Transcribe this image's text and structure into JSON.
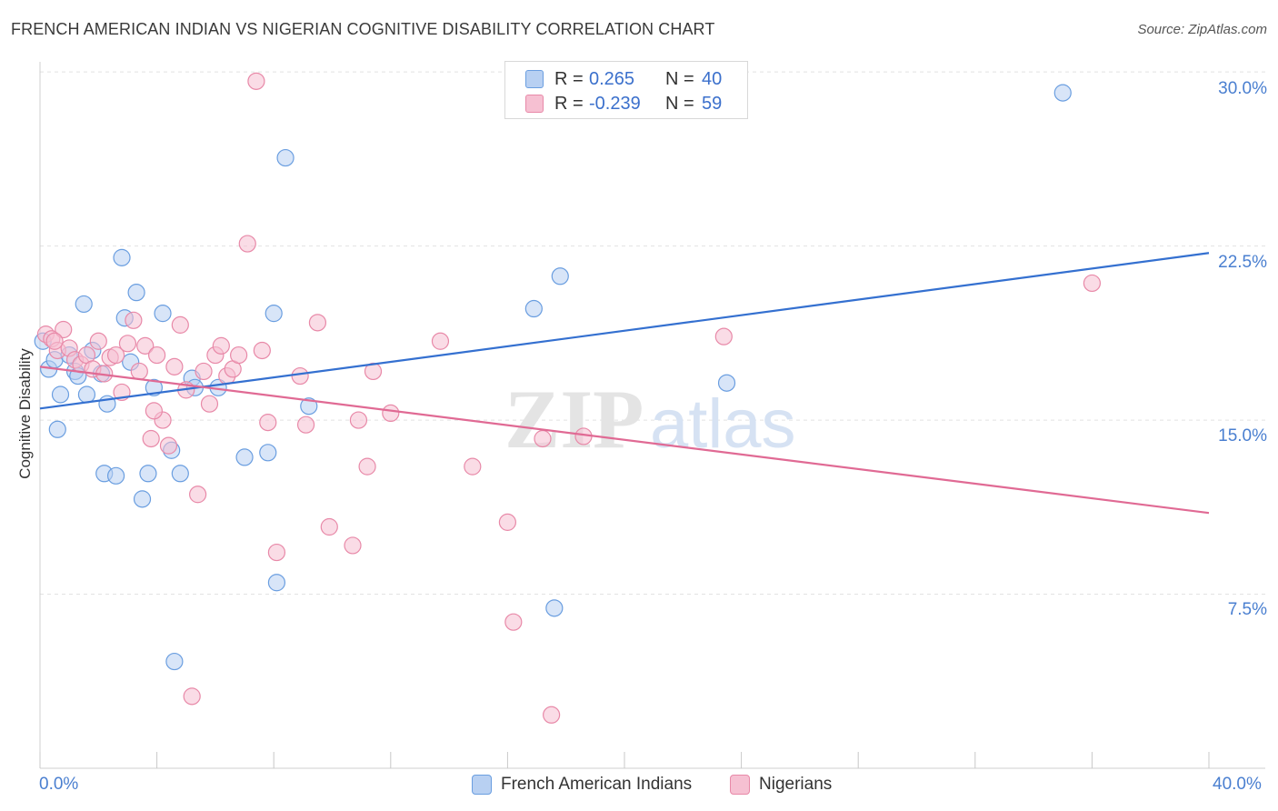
{
  "chart_data": {
    "type": "scatter",
    "title": "FRENCH AMERICAN INDIAN VS NIGERIAN COGNITIVE DISABILITY CORRELATION CHART",
    "source": "Source: ZipAtlas.com",
    "xlabel": "",
    "ylabel": "Cognitive Disability",
    "xlim": [
      0,
      40
    ],
    "ylim": [
      0,
      31.5
    ],
    "x_tick_labels": [
      {
        "value": 0,
        "label": "0.0%"
      },
      {
        "value": 40,
        "label": "40.0%"
      }
    ],
    "y_tick_labels": [
      {
        "value": 7.5,
        "label": "7.5%"
      },
      {
        "value": 15,
        "label": "15.0%"
      },
      {
        "value": 22.5,
        "label": "22.5%"
      },
      {
        "value": 30,
        "label": "30.0%"
      }
    ],
    "watermark": {
      "zip": "ZIP",
      "atlas": "atlas"
    },
    "stats": [
      {
        "series": "French American Indians",
        "r_label": "R =",
        "r": "0.265",
        "n_label": "N =",
        "n": "40"
      },
      {
        "series": "Nigerians",
        "r_label": "R =",
        "r": "-0.239",
        "n_label": "N =",
        "n": "59"
      }
    ],
    "series": [
      {
        "name": "French American Indians",
        "color": "#6a9ee0",
        "fill": "#b8d0f2",
        "trend": {
          "x": [
            0,
            40
          ],
          "y": [
            15.5,
            22.2
          ],
          "color": "#3470d0"
        },
        "points": [
          [
            0.1,
            18.4
          ],
          [
            0.3,
            17.2
          ],
          [
            0.5,
            17.6
          ],
          [
            0.7,
            16.1
          ],
          [
            1.0,
            17.8
          ],
          [
            1.2,
            17.1
          ],
          [
            0.6,
            14.6
          ],
          [
            1.5,
            20.0
          ],
          [
            1.6,
            16.1
          ],
          [
            1.8,
            18.0
          ],
          [
            2.1,
            17.0
          ],
          [
            2.3,
            15.7
          ],
          [
            2.2,
            12.7
          ],
          [
            2.6,
            12.6
          ],
          [
            2.8,
            22.0
          ],
          [
            2.9,
            19.4
          ],
          [
            3.1,
            17.5
          ],
          [
            3.3,
            20.5
          ],
          [
            3.5,
            11.6
          ],
          [
            3.7,
            12.7
          ],
          [
            3.9,
            16.4
          ],
          [
            4.2,
            19.6
          ],
          [
            4.5,
            13.7
          ],
          [
            4.8,
            12.7
          ],
          [
            5.2,
            16.8
          ],
          [
            5.3,
            16.4
          ],
          [
            6.1,
            16.4
          ],
          [
            7.0,
            13.4
          ],
          [
            7.8,
            13.6
          ],
          [
            8.0,
            19.6
          ],
          [
            8.4,
            26.3
          ],
          [
            9.2,
            15.6
          ],
          [
            8.1,
            8.0
          ],
          [
            4.6,
            4.6
          ],
          [
            16.9,
            19.8
          ],
          [
            17.8,
            21.2
          ],
          [
            17.6,
            6.9
          ],
          [
            23.5,
            16.6
          ],
          [
            35.0,
            29.1
          ],
          [
            1.3,
            16.9
          ]
        ]
      },
      {
        "name": "Nigerians",
        "color": "#e889a8",
        "fill": "#f6c0d2",
        "trend": {
          "x": [
            0,
            40
          ],
          "y": [
            17.3,
            11.0
          ],
          "color": "#e06a94"
        },
        "points": [
          [
            0.2,
            18.7
          ],
          [
            0.4,
            18.5
          ],
          [
            0.6,
            18.0
          ],
          [
            0.8,
            18.9
          ],
          [
            1.0,
            18.1
          ],
          [
            1.2,
            17.6
          ],
          [
            1.4,
            17.4
          ],
          [
            1.6,
            17.8
          ],
          [
            1.8,
            17.2
          ],
          [
            2.0,
            18.4
          ],
          [
            2.2,
            17.0
          ],
          [
            2.4,
            17.7
          ],
          [
            2.6,
            17.8
          ],
          [
            2.8,
            16.2
          ],
          [
            3.0,
            18.3
          ],
          [
            3.2,
            19.3
          ],
          [
            3.4,
            17.1
          ],
          [
            3.6,
            18.2
          ],
          [
            3.8,
            14.2
          ],
          [
            4.0,
            17.8
          ],
          [
            4.2,
            15.0
          ],
          [
            4.4,
            13.9
          ],
          [
            4.6,
            17.3
          ],
          [
            4.8,
            19.1
          ],
          [
            5.0,
            16.3
          ],
          [
            5.2,
            3.1
          ],
          [
            5.4,
            11.8
          ],
          [
            5.6,
            17.1
          ],
          [
            5.8,
            15.7
          ],
          [
            6.0,
            17.8
          ],
          [
            6.2,
            18.2
          ],
          [
            6.4,
            16.9
          ],
          [
            6.6,
            17.2
          ],
          [
            6.8,
            17.8
          ],
          [
            7.1,
            22.6
          ],
          [
            7.4,
            29.6
          ],
          [
            7.6,
            18.0
          ],
          [
            7.8,
            14.9
          ],
          [
            8.1,
            9.3
          ],
          [
            8.9,
            16.9
          ],
          [
            9.1,
            14.8
          ],
          [
            9.5,
            19.2
          ],
          [
            9.9,
            10.4
          ],
          [
            10.7,
            9.6
          ],
          [
            10.9,
            15.0
          ],
          [
            11.2,
            13.0
          ],
          [
            11.4,
            17.1
          ],
          [
            12.0,
            15.3
          ],
          [
            13.7,
            18.4
          ],
          [
            14.8,
            13.0
          ],
          [
            16.0,
            10.6
          ],
          [
            16.2,
            6.3
          ],
          [
            17.2,
            14.2
          ],
          [
            17.5,
            2.3
          ],
          [
            18.6,
            14.3
          ],
          [
            23.4,
            18.6
          ],
          [
            36.0,
            20.9
          ],
          [
            3.9,
            15.4
          ],
          [
            0.5,
            18.4
          ]
        ]
      }
    ]
  }
}
